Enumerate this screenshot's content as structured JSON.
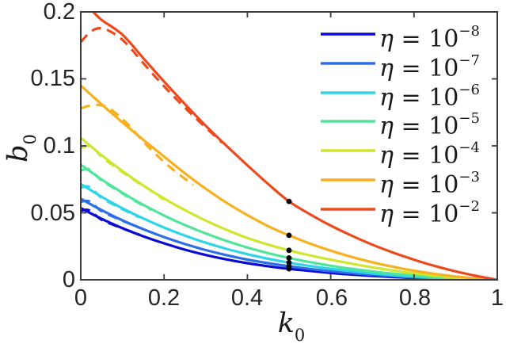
{
  "figure": {
    "background": "#ffffff",
    "axis_color": "#3b3b3b",
    "tick_label_color": "#262626",
    "xlabel": {
      "var": "k",
      "sub": "0"
    },
    "ylabel": {
      "var": "b",
      "sub": "0"
    },
    "x_ticks": [
      {
        "value": 0,
        "label": "0"
      },
      {
        "value": 0.2,
        "label": "0.2"
      },
      {
        "value": 0.4,
        "label": "0.4"
      },
      {
        "value": 0.6,
        "label": "0.6"
      },
      {
        "value": 0.8,
        "label": "0.8"
      },
      {
        "value": 1,
        "label": "1"
      }
    ],
    "y_ticks": [
      {
        "value": 0,
        "label": "0"
      },
      {
        "value": 0.05,
        "label": "0.05"
      },
      {
        "value": 0.1,
        "label": "0.1"
      },
      {
        "value": 0.15,
        "label": "0.15"
      },
      {
        "value": 0.2,
        "label": "0.2"
      }
    ]
  },
  "legend": {
    "items": [
      {
        "sym": "η",
        "eq": " = 10",
        "exp": "−8",
        "color": "#0b0bd6"
      },
      {
        "sym": "η",
        "eq": " = 10",
        "exp": "−7",
        "color": "#2e6fe8"
      },
      {
        "sym": "η",
        "eq": " = 10",
        "exp": "−6",
        "color": "#2fd4e8"
      },
      {
        "sym": "η",
        "eq": " = 10",
        "exp": "−5",
        "color": "#50e699"
      },
      {
        "sym": "η",
        "eq": " = 10",
        "exp": "−4",
        "color": "#d0e62e"
      },
      {
        "sym": "η",
        "eq": " = 10",
        "exp": "−3",
        "color": "#f7b11f"
      },
      {
        "sym": "η",
        "eq": " = 10",
        "exp": "−2",
        "color": "#ec4a1c"
      }
    ]
  },
  "chart_data": {
    "type": "line",
    "title": "",
    "xlabel": "k_0",
    "ylabel": "b_0",
    "xlim": [
      0,
      1
    ],
    "ylim": [
      0,
      0.2
    ],
    "x_tick_values": [
      0,
      0.2,
      0.4,
      0.6,
      0.8,
      1
    ],
    "y_tick_values": [
      0,
      0.05,
      0.1,
      0.15,
      0.2
    ],
    "grid": false,
    "box": true,
    "legend_position": "upper right",
    "series": [
      {
        "name": "eta=1e-8",
        "label": "η = 10^−8",
        "color": "#0b0bd6",
        "line_style": "solid",
        "points": [
          [
            0,
            0.0535
          ],
          [
            0.05,
            0.0455
          ],
          [
            0.1,
            0.0385
          ],
          [
            0.15,
            0.0325
          ],
          [
            0.2,
            0.0272
          ],
          [
            0.25,
            0.0225
          ],
          [
            0.3,
            0.0185
          ],
          [
            0.35,
            0.0152
          ],
          [
            0.4,
            0.0124
          ],
          [
            0.45,
            0.0101
          ],
          [
            0.5,
            0.0082
          ],
          [
            0.55,
            0.0066
          ],
          [
            0.6,
            0.0051
          ],
          [
            0.65,
            0.0039
          ],
          [
            0.7,
            0.0029
          ],
          [
            0.75,
            0.0021
          ],
          [
            0.8,
            0.0014
          ],
          [
            0.85,
            0.0009
          ],
          [
            0.9,
            0.0005
          ],
          [
            0.95,
            0.0002
          ],
          [
            1,
            0
          ]
        ]
      },
      {
        "name": "eta=1e-7",
        "label": "η = 10^−7",
        "color": "#2e6fe8",
        "line_style": "solid",
        "points": [
          [
            0,
            0.0605
          ],
          [
            0.05,
            0.052
          ],
          [
            0.1,
            0.0444
          ],
          [
            0.15,
            0.0378
          ],
          [
            0.2,
            0.0319
          ],
          [
            0.25,
            0.0267
          ],
          [
            0.3,
            0.0222
          ],
          [
            0.35,
            0.0184
          ],
          [
            0.4,
            0.0151
          ],
          [
            0.45,
            0.0124
          ],
          [
            0.5,
            0.0101
          ],
          [
            0.55,
            0.0081
          ],
          [
            0.6,
            0.0064
          ],
          [
            0.65,
            0.0049
          ],
          [
            0.7,
            0.0037
          ],
          [
            0.75,
            0.0027
          ],
          [
            0.8,
            0.0018
          ],
          [
            0.85,
            0.0011
          ],
          [
            0.9,
            0.0006
          ],
          [
            0.95,
            0.0002
          ],
          [
            1,
            0
          ]
        ]
      },
      {
        "name": "eta=1e-6",
        "label": "η = 10^−6",
        "color": "#2fd4e8",
        "line_style": "solid",
        "points": [
          [
            0,
            0.0715
          ],
          [
            0.05,
            0.062
          ],
          [
            0.1,
            0.0534
          ],
          [
            0.15,
            0.0458
          ],
          [
            0.2,
            0.039
          ],
          [
            0.25,
            0.033
          ],
          [
            0.3,
            0.0277
          ],
          [
            0.35,
            0.0231
          ],
          [
            0.4,
            0.0191
          ],
          [
            0.45,
            0.0157
          ],
          [
            0.5,
            0.0128
          ],
          [
            0.55,
            0.0103
          ],
          [
            0.6,
            0.0082
          ],
          [
            0.65,
            0.0064
          ],
          [
            0.7,
            0.0048
          ],
          [
            0.75,
            0.0035
          ],
          [
            0.8,
            0.0024
          ],
          [
            0.85,
            0.0015
          ],
          [
            0.9,
            0.0008
          ],
          [
            0.95,
            0.0003
          ],
          [
            1,
            0
          ]
        ]
      },
      {
        "name": "eta=1e-5",
        "label": "η = 10^−5",
        "color": "#50e699",
        "line_style": "solid",
        "points": [
          [
            0,
            0.086
          ],
          [
            0.05,
            0.075
          ],
          [
            0.1,
            0.065
          ],
          [
            0.15,
            0.056
          ],
          [
            0.2,
            0.048
          ],
          [
            0.25,
            0.0409
          ],
          [
            0.3,
            0.0346
          ],
          [
            0.35,
            0.029
          ],
          [
            0.4,
            0.0241
          ],
          [
            0.45,
            0.0199
          ],
          [
            0.5,
            0.0163
          ],
          [
            0.55,
            0.0132
          ],
          [
            0.6,
            0.0105
          ],
          [
            0.65,
            0.0082
          ],
          [
            0.7,
            0.0063
          ],
          [
            0.75,
            0.0046
          ],
          [
            0.8,
            0.0032
          ],
          [
            0.85,
            0.002
          ],
          [
            0.9,
            0.0011
          ],
          [
            0.95,
            0.0004
          ],
          [
            1,
            0
          ]
        ]
      },
      {
        "name": "eta=1e-4",
        "label": "η = 10^−4",
        "color": "#d0e62e",
        "line_style": "solid",
        "points": [
          [
            0,
            0.106
          ],
          [
            0.05,
            0.093
          ],
          [
            0.1,
            0.0812
          ],
          [
            0.15,
            0.0705
          ],
          [
            0.2,
            0.0607
          ],
          [
            0.25,
            0.052
          ],
          [
            0.3,
            0.0442
          ],
          [
            0.35,
            0.0373
          ],
          [
            0.4,
            0.0312
          ],
          [
            0.45,
            0.0262
          ],
          [
            0.5,
            0.022
          ],
          [
            0.55,
            0.0182
          ],
          [
            0.6,
            0.015
          ],
          [
            0.65,
            0.012
          ],
          [
            0.7,
            0.0093
          ],
          [
            0.75,
            0.0069
          ],
          [
            0.8,
            0.0049
          ],
          [
            0.85,
            0.0031
          ],
          [
            0.9,
            0.0016
          ],
          [
            0.95,
            0.0006
          ],
          [
            1,
            0
          ]
        ]
      },
      {
        "name": "eta=1e-3",
        "label": "η = 10^−3",
        "color": "#f7b11f",
        "line_style": "solid",
        "points": [
          [
            0,
            0.145
          ],
          [
            0.05,
            0.131
          ],
          [
            0.1,
            0.1175
          ],
          [
            0.15,
            0.1045
          ],
          [
            0.2,
            0.092
          ],
          [
            0.25,
            0.0795
          ],
          [
            0.3,
            0.068
          ],
          [
            0.35,
            0.0575
          ],
          [
            0.4,
            0.0483
          ],
          [
            0.45,
            0.04
          ],
          [
            0.5,
            0.0332
          ],
          [
            0.55,
            0.0271
          ],
          [
            0.6,
            0.0218
          ],
          [
            0.65,
            0.0171
          ],
          [
            0.7,
            0.0131
          ],
          [
            0.75,
            0.0097
          ],
          [
            0.8,
            0.0068
          ],
          [
            0.85,
            0.0044
          ],
          [
            0.9,
            0.0025
          ],
          [
            0.95,
            0.001
          ],
          [
            1,
            0
          ]
        ]
      },
      {
        "name": "eta=1e-2",
        "label": "η = 10^−2",
        "color": "#ec4a1c",
        "line_style": "solid",
        "points": [
          [
            0.03,
            0.2
          ],
          [
            0.05,
            0.194
          ],
          [
            0.1,
            0.183
          ],
          [
            0.15,
            0.1655
          ],
          [
            0.2,
            0.148
          ],
          [
            0.25,
            0.1312
          ],
          [
            0.3,
            0.115
          ],
          [
            0.35,
            0.1
          ],
          [
            0.4,
            0.0855
          ],
          [
            0.45,
            0.0715
          ],
          [
            0.5,
            0.0585
          ],
          [
            0.55,
            0.049
          ],
          [
            0.6,
            0.0405
          ],
          [
            0.65,
            0.033
          ],
          [
            0.7,
            0.0262
          ],
          [
            0.75,
            0.0203
          ],
          [
            0.8,
            0.015
          ],
          [
            0.85,
            0.0103
          ],
          [
            0.9,
            0.0063
          ],
          [
            0.95,
            0.0029
          ],
          [
            1,
            0
          ]
        ]
      },
      {
        "name": "eta=1e-8-dashed",
        "label": "",
        "color": "#0b0bd6",
        "line_style": "dashed",
        "points": [
          [
            0,
            0.0515
          ],
          [
            0.02,
            0.0519
          ],
          [
            0.05,
            0.0448
          ],
          [
            0.08,
            0.0408
          ],
          [
            0.11,
            0.0372
          ],
          [
            0.14,
            0.0338
          ]
        ]
      },
      {
        "name": "eta=1e-7-dashed",
        "label": "",
        "color": "#2e6fe8",
        "line_style": "dashed",
        "points": [
          [
            0,
            0.0582
          ],
          [
            0.02,
            0.0586
          ],
          [
            0.05,
            0.0512
          ],
          [
            0.08,
            0.0468
          ],
          [
            0.11,
            0.0428
          ],
          [
            0.14,
            0.039
          ]
        ]
      },
      {
        "name": "eta=1e-6-dashed",
        "label": "",
        "color": "#2fd4e8",
        "line_style": "dashed",
        "points": [
          [
            0,
            0.0688
          ],
          [
            0.02,
            0.0694
          ],
          [
            0.05,
            0.0612
          ],
          [
            0.08,
            0.056
          ],
          [
            0.11,
            0.0512
          ],
          [
            0.14,
            0.0468
          ]
        ]
      },
      {
        "name": "eta=1e-5-dashed",
        "label": "",
        "color": "#50e699",
        "line_style": "dashed",
        "points": [
          [
            0,
            0.0815
          ],
          [
            0.02,
            0.0824
          ],
          [
            0.05,
            0.0742
          ],
          [
            0.08,
            0.0684
          ],
          [
            0.11,
            0.0625
          ],
          [
            0.14,
            0.0572
          ],
          [
            0.17,
            0.0522
          ]
        ]
      },
      {
        "name": "eta=1e-4-dashed",
        "label": "",
        "color": "#d0e62e",
        "line_style": "dashed",
        "points": [
          [
            0,
            0.0985
          ],
          [
            0.025,
            0.0997
          ],
          [
            0.05,
            0.0918
          ],
          [
            0.08,
            0.0848
          ],
          [
            0.11,
            0.0782
          ],
          [
            0.14,
            0.0722
          ],
          [
            0.17,
            0.0663
          ],
          [
            0.2,
            0.0597
          ]
        ]
      },
      {
        "name": "eta=1e-3-dashed",
        "label": "",
        "color": "#f7b11f",
        "line_style": "dashed",
        "points": [
          [
            0,
            0.128
          ],
          [
            0.03,
            0.1305
          ],
          [
            0.06,
            0.1293
          ],
          [
            0.09,
            0.1228
          ],
          [
            0.12,
            0.1138
          ],
          [
            0.15,
            0.1032
          ],
          [
            0.18,
            0.0938
          ],
          [
            0.21,
            0.0852
          ],
          [
            0.24,
            0.0778
          ],
          [
            0.27,
            0.0708
          ]
        ]
      },
      {
        "name": "eta=1e-2-dashed",
        "label": "",
        "color": "#ec4a1c",
        "line_style": "dashed",
        "points": [
          [
            0,
            0.1775
          ],
          [
            0.025,
            0.1855
          ],
          [
            0.05,
            0.1878
          ],
          [
            0.08,
            0.1838
          ],
          [
            0.11,
            0.1762
          ],
          [
            0.15,
            0.1618
          ],
          [
            0.19,
            0.1478
          ],
          [
            0.23,
            0.1348
          ],
          [
            0.27,
            0.1225
          ],
          [
            0.31,
            0.1108
          ],
          [
            0.34,
            0.1023
          ]
        ]
      }
    ],
    "markers": {
      "shape": "circle",
      "color": "#000000",
      "description": "black dots on each solid curve at k0 = 0.5",
      "points": [
        [
          0.5,
          0.0082
        ],
        [
          0.5,
          0.0101
        ],
        [
          0.5,
          0.0128
        ],
        [
          0.5,
          0.0163
        ],
        [
          0.5,
          0.022
        ],
        [
          0.5,
          0.0332
        ],
        [
          0.5,
          0.0585
        ]
      ]
    }
  }
}
